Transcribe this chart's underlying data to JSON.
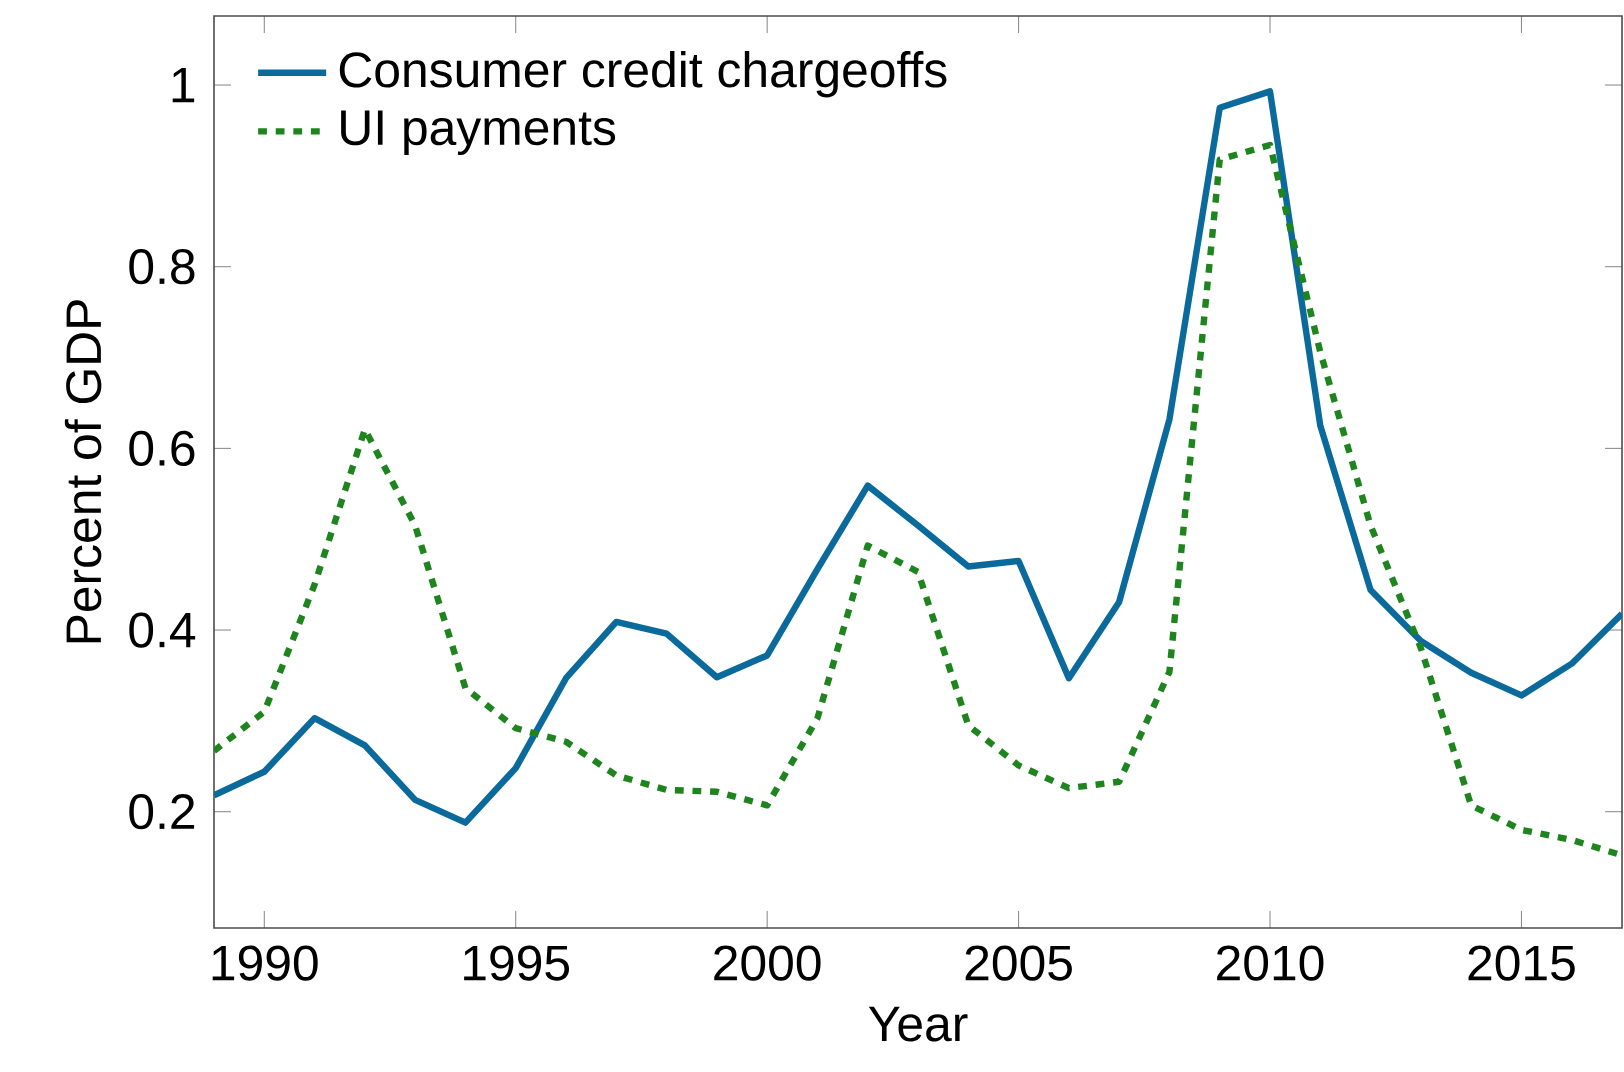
{
  "chart_data": {
    "type": "line",
    "xlabel": "Year",
    "ylabel": "Percent of GDP",
    "x": [
      1989,
      1990,
      1991,
      1992,
      1993,
      1994,
      1995,
      1996,
      1997,
      1998,
      1999,
      2000,
      2001,
      2002,
      2003,
      2004,
      2005,
      2006,
      2007,
      2008,
      2009,
      2010,
      2011,
      2012,
      2013,
      2014,
      2015,
      2016,
      2017
    ],
    "series": [
      {
        "name": "Consumer credit chargeoffs",
        "color": "#0b6a9c",
        "line_style": "solid",
        "values": [
          0.218,
          0.244,
          0.303,
          0.273,
          0.213,
          0.188,
          0.248,
          0.347,
          0.409,
          0.396,
          0.348,
          0.372,
          0.467,
          0.559,
          0.515,
          0.47,
          0.476,
          0.347,
          0.431,
          0.632,
          0.975,
          0.993,
          0.625,
          0.444,
          0.388,
          0.353,
          0.328,
          0.363,
          0.418
        ]
      },
      {
        "name": "UI payments",
        "color": "#1e841e",
        "line_style": "dotted",
        "values": [
          0.267,
          0.31,
          0.45,
          0.621,
          0.515,
          0.336,
          0.292,
          0.277,
          0.24,
          0.224,
          0.222,
          0.207,
          0.303,
          0.493,
          0.464,
          0.295,
          0.251,
          0.226,
          0.233,
          0.354,
          0.918,
          0.934,
          0.706,
          0.515,
          0.38,
          0.207,
          0.18,
          0.169,
          0.152
        ]
      }
    ],
    "xlim": [
      1989,
      2017
    ],
    "ylim": [
      0.072,
      1.076
    ],
    "xticks": [
      1990,
      1995,
      2000,
      2005,
      2010,
      2015
    ],
    "yticks": [
      0.2,
      0.4,
      0.6,
      0.8,
      1
    ],
    "grid": false,
    "legend": "top left",
    "marker": "none"
  }
}
